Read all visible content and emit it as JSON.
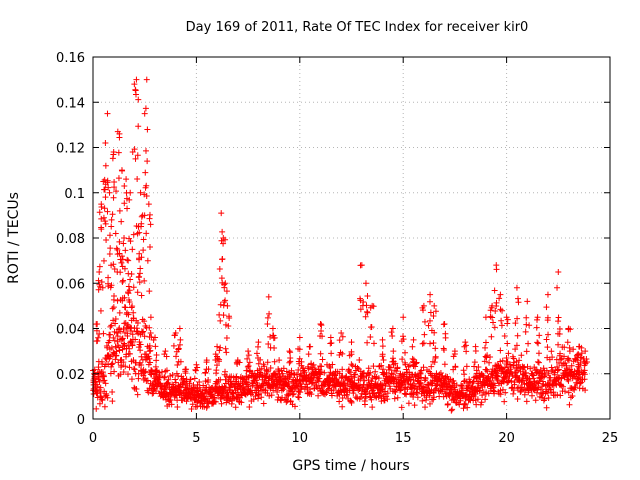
{
  "chart_data": {
    "type": "scatter",
    "title": "Day 169 of 2011, Rate Of TEC Index for receiver kir0",
    "xlabel": "GPS time / hours",
    "ylabel": "ROTI / TECUs",
    "xlim": [
      0,
      25
    ],
    "ylim": [
      0,
      0.16
    ],
    "xticks": [
      0,
      5,
      10,
      15,
      20,
      25
    ],
    "xtick_labels": [
      "0",
      "5",
      "10",
      "15",
      "20",
      "25"
    ],
    "yticks": [
      0,
      0.02,
      0.04,
      0.06,
      0.08,
      0.1,
      0.12,
      0.14,
      0.16
    ],
    "ytick_labels": [
      "0",
      "0.02",
      "0.04",
      "0.06",
      "0.08",
      "0.1",
      "0.12",
      "0.14",
      "0.16"
    ],
    "grid": true,
    "legend": "none",
    "marker": "+",
    "series_color": "#ff0000",
    "series": [
      {
        "points": [
          [
            0.1,
            0.018
          ],
          [
            0.2,
            0.042
          ],
          [
            0.3,
            0.065
          ],
          [
            0.4,
            0.095
          ],
          [
            0.5,
            0.105
          ],
          [
            0.6,
            0.122
          ],
          [
            0.7,
            0.135
          ],
          [
            0.8,
            0.1
          ],
          [
            0.9,
            0.088
          ],
          [
            1.0,
            0.118
          ],
          [
            1.1,
            0.082
          ],
          [
            1.2,
            0.127
          ],
          [
            1.3,
            0.092
          ],
          [
            1.4,
            0.11
          ],
          [
            1.5,
            0.08
          ],
          [
            1.6,
            0.106
          ],
          [
            1.7,
            0.07
          ],
          [
            1.8,
            0.1
          ],
          [
            1.9,
            0.075
          ],
          [
            2.0,
            0.148
          ],
          [
            2.1,
            0.15
          ],
          [
            2.2,
            0.085
          ],
          [
            2.3,
            0.1
          ],
          [
            2.4,
            0.09
          ],
          [
            2.5,
            0.135
          ],
          [
            2.6,
            0.15
          ],
          [
            2.7,
            0.095
          ],
          [
            2.8,
            0.045
          ],
          [
            3.0,
            0.036
          ],
          [
            3.5,
            0.03
          ],
          [
            4.0,
            0.038
          ],
          [
            4.2,
            0.04
          ],
          [
            4.5,
            0.022
          ],
          [
            5.0,
            0.024
          ],
          [
            5.5,
            0.026
          ],
          [
            6.0,
            0.032
          ],
          [
            6.1,
            0.046
          ],
          [
            6.2,
            0.091
          ],
          [
            6.3,
            0.08
          ],
          [
            6.4,
            0.06
          ],
          [
            6.5,
            0.05
          ],
          [
            7.0,
            0.026
          ],
          [
            7.5,
            0.03
          ],
          [
            8.0,
            0.034
          ],
          [
            8.5,
            0.054
          ],
          [
            8.7,
            0.04
          ],
          [
            9.0,
            0.026
          ],
          [
            9.5,
            0.03
          ],
          [
            10.0,
            0.036
          ],
          [
            10.5,
            0.032
          ],
          [
            11.0,
            0.042
          ],
          [
            11.5,
            0.036
          ],
          [
            12.0,
            0.038
          ],
          [
            12.5,
            0.034
          ],
          [
            13.0,
            0.068
          ],
          [
            13.2,
            0.06
          ],
          [
            13.5,
            0.05
          ],
          [
            14.0,
            0.035
          ],
          [
            14.5,
            0.04
          ],
          [
            15.0,
            0.045
          ],
          [
            15.5,
            0.035
          ],
          [
            16.0,
            0.05
          ],
          [
            16.3,
            0.055
          ],
          [
            16.5,
            0.05
          ],
          [
            17.0,
            0.042
          ],
          [
            17.5,
            0.03
          ],
          [
            18.0,
            0.034
          ],
          [
            18.5,
            0.032
          ],
          [
            19.0,
            0.045
          ],
          [
            19.3,
            0.05
          ],
          [
            19.5,
            0.068
          ],
          [
            19.7,
            0.055
          ],
          [
            20.0,
            0.045
          ],
          [
            20.5,
            0.058
          ],
          [
            21.0,
            0.052
          ],
          [
            21.5,
            0.045
          ],
          [
            22.0,
            0.055
          ],
          [
            22.5,
            0.065
          ],
          [
            23.0,
            0.04
          ],
          [
            23.5,
            0.032
          ],
          [
            23.8,
            0.03
          ]
        ],
        "baseline": [
          [
            0.0,
            0.012
          ],
          [
            0.5,
            0.02
          ],
          [
            1.0,
            0.03
          ],
          [
            1.5,
            0.035
          ],
          [
            2.0,
            0.03
          ],
          [
            2.5,
            0.028
          ],
          [
            3.0,
            0.015
          ],
          [
            3.5,
            0.012
          ],
          [
            4.0,
            0.013
          ],
          [
            4.5,
            0.012
          ],
          [
            5.0,
            0.01
          ],
          [
            5.5,
            0.01
          ],
          [
            6.0,
            0.012
          ],
          [
            6.5,
            0.013
          ],
          [
            7.0,
            0.012
          ],
          [
            7.5,
            0.014
          ],
          [
            8.0,
            0.016
          ],
          [
            8.5,
            0.016
          ],
          [
            9.0,
            0.015
          ],
          [
            9.5,
            0.015
          ],
          [
            10.0,
            0.016
          ],
          [
            10.5,
            0.017
          ],
          [
            11.0,
            0.017
          ],
          [
            11.5,
            0.016
          ],
          [
            12.0,
            0.015
          ],
          [
            12.5,
            0.016
          ],
          [
            13.0,
            0.016
          ],
          [
            13.5,
            0.015
          ],
          [
            14.0,
            0.015
          ],
          [
            14.5,
            0.016
          ],
          [
            15.0,
            0.017
          ],
          [
            15.5,
            0.016
          ],
          [
            16.0,
            0.016
          ],
          [
            16.5,
            0.016
          ],
          [
            17.0,
            0.014
          ],
          [
            17.5,
            0.011
          ],
          [
            18.0,
            0.011
          ],
          [
            18.5,
            0.013
          ],
          [
            19.0,
            0.016
          ],
          [
            19.5,
            0.019
          ],
          [
            20.0,
            0.02
          ],
          [
            20.5,
            0.019
          ],
          [
            21.0,
            0.017
          ],
          [
            21.5,
            0.016
          ],
          [
            22.0,
            0.017
          ],
          [
            22.5,
            0.019
          ],
          [
            23.0,
            0.02
          ],
          [
            23.5,
            0.02
          ],
          [
            23.8,
            0.018
          ]
        ],
        "spread": [
          [
            0.0,
            0.01
          ],
          [
            0.5,
            0.02
          ],
          [
            1.0,
            0.03
          ],
          [
            1.5,
            0.03
          ],
          [
            2.0,
            0.025
          ],
          [
            2.5,
            0.025
          ],
          [
            3.0,
            0.012
          ],
          [
            3.5,
            0.01
          ],
          [
            4.0,
            0.01
          ],
          [
            4.5,
            0.009
          ],
          [
            5.0,
            0.008
          ],
          [
            5.5,
            0.008
          ],
          [
            6.0,
            0.009
          ],
          [
            6.5,
            0.009
          ],
          [
            7.0,
            0.009
          ],
          [
            7.5,
            0.01
          ],
          [
            8.0,
            0.011
          ],
          [
            8.5,
            0.011
          ],
          [
            9.0,
            0.01
          ],
          [
            9.5,
            0.011
          ],
          [
            10.0,
            0.012
          ],
          [
            10.5,
            0.012
          ],
          [
            11.0,
            0.012
          ],
          [
            11.5,
            0.011
          ],
          [
            12.0,
            0.011
          ],
          [
            12.5,
            0.011
          ],
          [
            13.0,
            0.012
          ],
          [
            13.5,
            0.011
          ],
          [
            14.0,
            0.012
          ],
          [
            14.5,
            0.012
          ],
          [
            15.0,
            0.013
          ],
          [
            15.5,
            0.012
          ],
          [
            16.0,
            0.012
          ],
          [
            16.5,
            0.013
          ],
          [
            17.0,
            0.011
          ],
          [
            17.5,
            0.009
          ],
          [
            18.0,
            0.009
          ],
          [
            18.5,
            0.011
          ],
          [
            19.0,
            0.013
          ],
          [
            19.5,
            0.015
          ],
          [
            20.0,
            0.016
          ],
          [
            20.5,
            0.015
          ],
          [
            21.0,
            0.013
          ],
          [
            21.5,
            0.012
          ],
          [
            22.0,
            0.014
          ],
          [
            22.5,
            0.015
          ],
          [
            23.0,
            0.016
          ],
          [
            23.5,
            0.016
          ],
          [
            23.8,
            0.015
          ]
        ]
      }
    ]
  }
}
